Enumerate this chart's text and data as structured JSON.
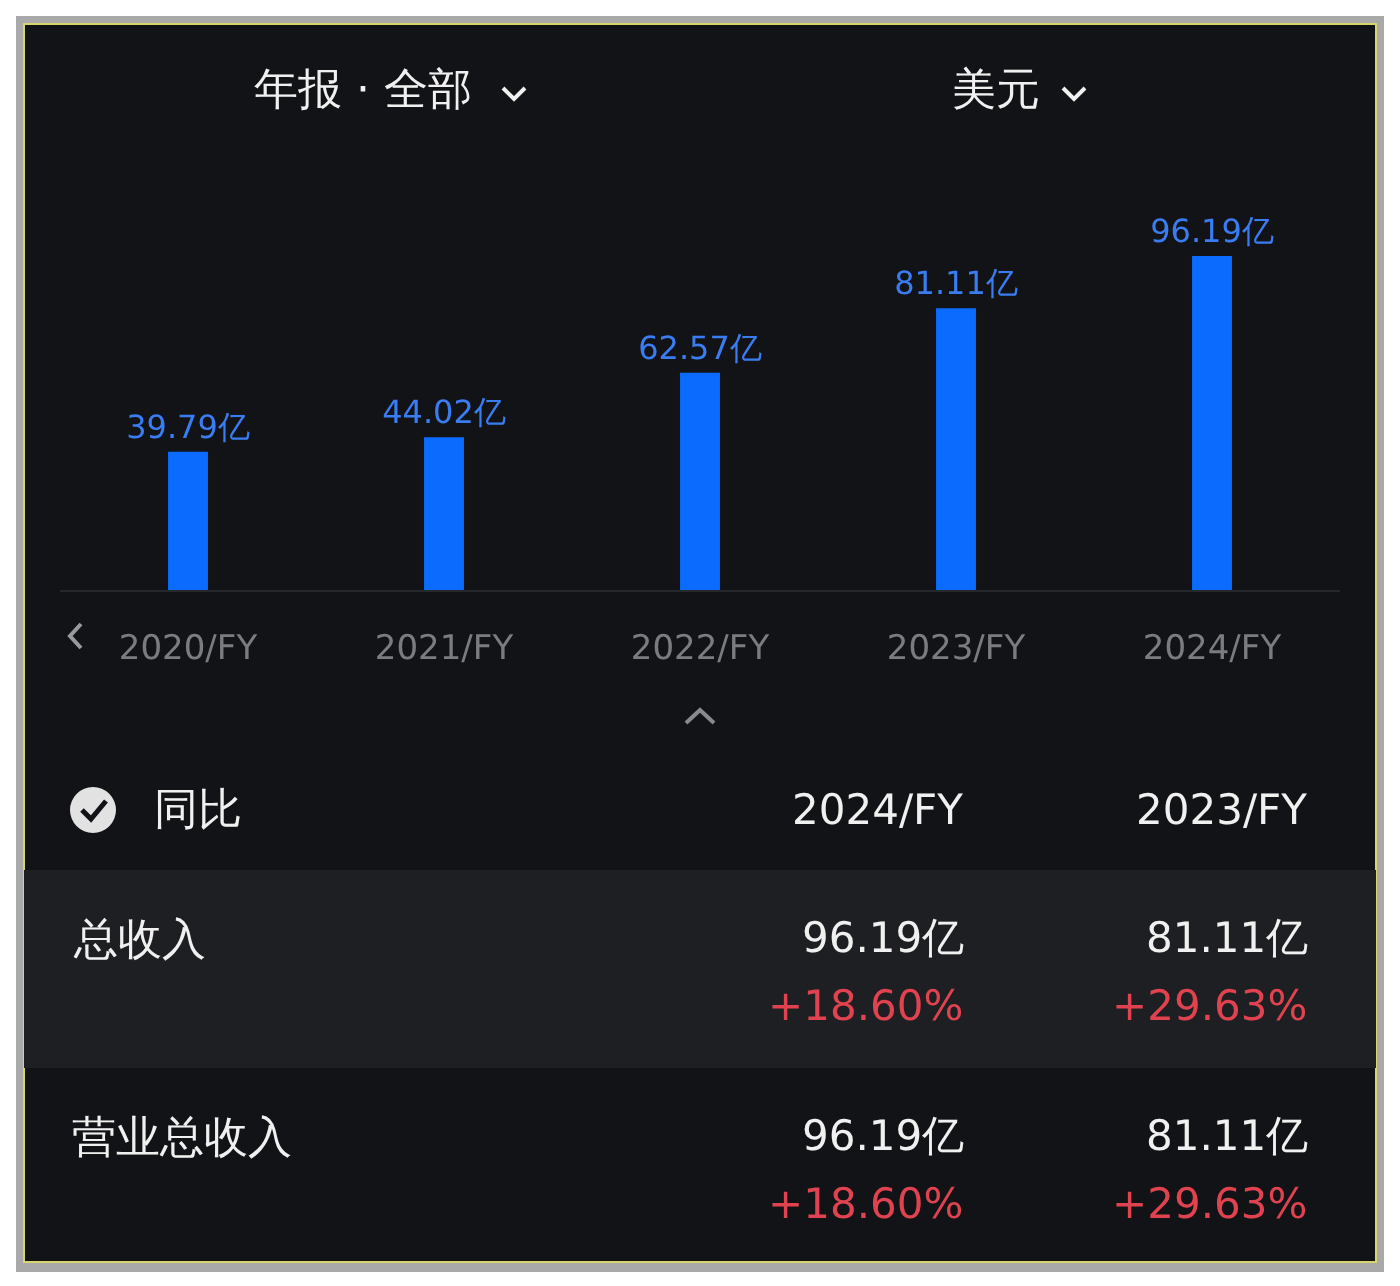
{
  "chart_data": [
    {
      "type": "bar",
      "annotations": [
        "年报 · 全部",
        "美元"
      ],
      "categories": [
        "2020/FY",
        "2021/FY",
        "2022/FY",
        "2023/FY",
        "2024/FY"
      ],
      "values": [
        39.79,
        44.02,
        62.57,
        81.11,
        96.19
      ],
      "value_labels": [
        "39.79亿",
        "44.02亿",
        "62.57亿",
        "81.11亿",
        "96.19亿"
      ],
      "color": "#0b6bff"
    },
    {
      "type": "other",
      "title": "同比",
      "annotations": [
        "2024/FY",
        "2023/FY",
        "总收入",
        "96.19亿",
        "+18.60%",
        "81.11亿",
        "+29.63%",
        "营业总收入",
        "96.19亿",
        "+18.60%",
        "81.11亿",
        "+29.63%"
      ]
    }
  ]
}
